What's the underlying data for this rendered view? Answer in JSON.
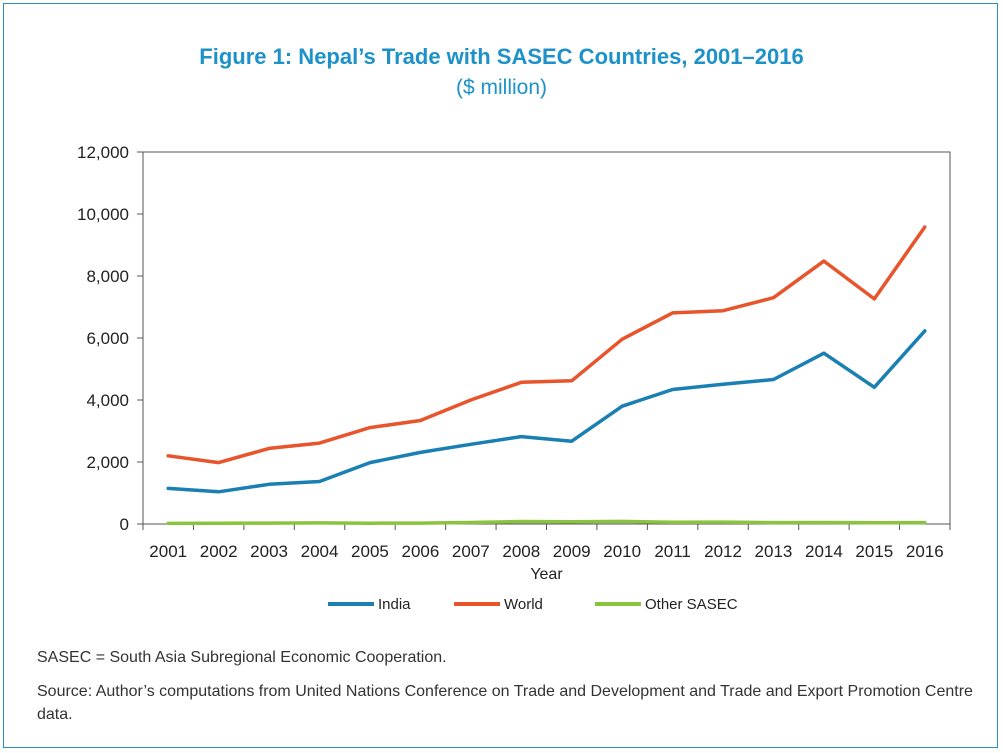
{
  "figure": {
    "title": "Figure 1: Nepal’s Trade with SASEC Countries, 2001–2016",
    "subtitle": "($ million)",
    "note": "SASEC = South Asia Subregional Economic Cooperation.",
    "source": "Source: Author’s computations from United Nations Conference on Trade and Development and Trade and Export Promotion Centre data."
  },
  "chart_data": {
    "type": "line",
    "title": "Figure 1: Nepal’s Trade with SASEC Countries, 2001–2016",
    "subtitle": "($ million)",
    "xlabel": "Year",
    "ylabel": "",
    "categories": [
      "2001",
      "2002",
      "2003",
      "2004",
      "2005",
      "2006",
      "2007",
      "2008",
      "2009",
      "2010",
      "2011",
      "2012",
      "2013",
      "2014",
      "2015",
      "2016"
    ],
    "ylim": [
      0,
      12000
    ],
    "yticks": [
      0,
      2000,
      4000,
      6000,
      8000,
      10000,
      12000
    ],
    "ytick_labels": [
      "0",
      "2,000",
      "4,000",
      "6,000",
      "8,000",
      "10,000",
      "12,000"
    ],
    "grid": false,
    "legend_position": "bottom",
    "series": [
      {
        "name": "India",
        "color": "#1a7fb3",
        "values": [
          1150,
          1040,
          1280,
          1370,
          1980,
          2310,
          2570,
          2820,
          2670,
          3800,
          4340,
          4510,
          4660,
          5510,
          4410,
          6230
        ]
      },
      {
        "name": "World",
        "color": "#e8542b",
        "values": [
          2200,
          1980,
          2440,
          2610,
          3110,
          3340,
          4000,
          4570,
          4620,
          5960,
          6810,
          6880,
          7300,
          8480,
          7260,
          9580
        ]
      },
      {
        "name": "Other SASEC",
        "color": "#8ac43f",
        "values": [
          20,
          25,
          30,
          35,
          25,
          30,
          50,
          80,
          75,
          85,
          55,
          60,
          45,
          50,
          40,
          45
        ]
      }
    ]
  }
}
